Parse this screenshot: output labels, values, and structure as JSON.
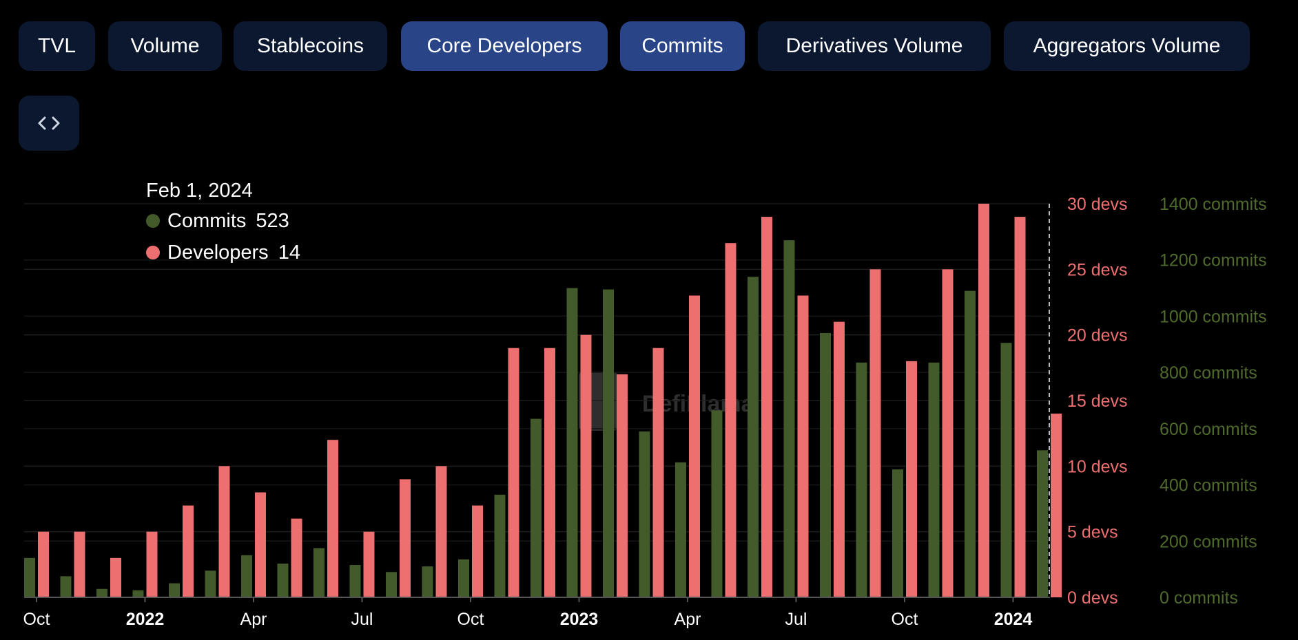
{
  "tabs": [
    {
      "label": "TVL",
      "active": false
    },
    {
      "label": "Volume",
      "active": false
    },
    {
      "label": "Stablecoins",
      "active": false
    },
    {
      "label": "Core Developers",
      "active": true
    },
    {
      "label": "Commits",
      "active": true
    },
    {
      "label": "Derivatives Volume",
      "active": false
    },
    {
      "label": "Aggregators Volume",
      "active": false
    }
  ],
  "embed_icon": "code-brackets-icon",
  "tooltip": {
    "date": "Feb 1, 2024",
    "commits_label": "Commits",
    "commits_value": "523",
    "developers_label": "Developers",
    "developers_value": "14"
  },
  "watermark": "DefiLlama",
  "colors": {
    "commits": "#435a2a",
    "developers": "#ed6f6f",
    "commits_axis": "#4f6a2c",
    "developers_axis": "#ed6f6f",
    "active_tab": "#2a4488",
    "tab": "#0c1730"
  },
  "chart_data": {
    "type": "bar",
    "x_tick_labels": [
      {
        "label": "Oct",
        "index": 0,
        "bold": false
      },
      {
        "label": "2022",
        "index": 3,
        "bold": true
      },
      {
        "label": "Apr",
        "index": 6,
        "bold": false
      },
      {
        "label": "Jul",
        "index": 9,
        "bold": false
      },
      {
        "label": "Oct",
        "index": 12,
        "bold": false
      },
      {
        "label": "2023",
        "index": 15,
        "bold": true
      },
      {
        "label": "Apr",
        "index": 18,
        "bold": false
      },
      {
        "label": "Jul",
        "index": 21,
        "bold": false
      },
      {
        "label": "Oct",
        "index": 24,
        "bold": false
      },
      {
        "label": "2024",
        "index": 27,
        "bold": true
      }
    ],
    "series": [
      {
        "name": "Commits",
        "axis": "right",
        "values": [
          140,
          75,
          30,
          25,
          50,
          95,
          150,
          120,
          175,
          115,
          90,
          110,
          135,
          365,
          635,
          1100,
          1095,
          590,
          480,
          665,
          1140,
          1270,
          940,
          835,
          455,
          835,
          1090,
          905,
          523
        ]
      },
      {
        "name": "Developers",
        "axis": "left",
        "values": [
          5,
          5,
          3,
          5,
          7,
          10,
          8,
          6,
          12,
          5,
          9,
          10,
          7,
          19,
          19,
          20,
          17,
          19,
          23,
          27,
          29,
          23,
          21,
          25,
          18,
          25,
          30,
          29,
          14
        ]
      }
    ],
    "left_axis": {
      "ticks": [
        0,
        5,
        10,
        15,
        20,
        25,
        30
      ],
      "unit": "devs",
      "ylim": [
        0,
        30
      ]
    },
    "right_axis": {
      "ticks": [
        0,
        200,
        400,
        600,
        800,
        1000,
        1200,
        1400
      ],
      "unit": "commits",
      "ylim": [
        0,
        1400
      ]
    },
    "grid": true,
    "legend": "tooltip top-left"
  }
}
